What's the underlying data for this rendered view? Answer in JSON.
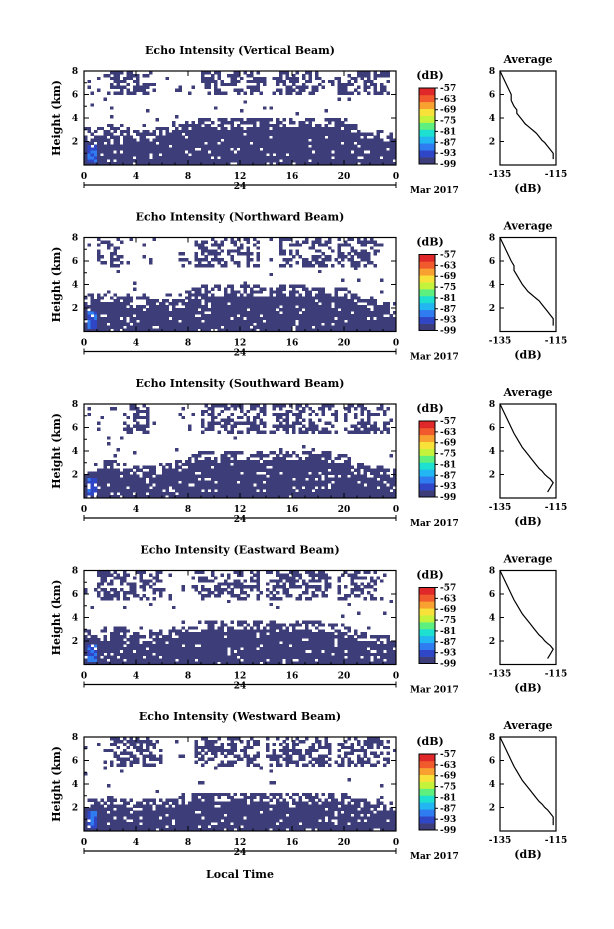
{
  "colors": {
    "palette": [
      "#3d3d7a",
      "#2f46c6",
      "#2f7cf0",
      "#22b6f2",
      "#1de0d0",
      "#5ef07e",
      "#c5f23a",
      "#f8e23a",
      "#f8a030",
      "#f05a2c",
      "#e0282a"
    ],
    "data_fill": "#3d3d7a",
    "axis": "#000000"
  },
  "footer": {
    "xlabel": "Local Time"
  },
  "chart_data": [
    {
      "type": "heatmap",
      "title": "Echo Intensity (Vertical Beam)",
      "ylabel": "Height (km)",
      "xlim": [
        0,
        24
      ],
      "ylim": [
        0,
        8
      ],
      "xticks": [
        "0",
        "4",
        "8",
        "12",
        "16",
        "20",
        "0"
      ],
      "xticks_values": [
        0,
        4,
        8,
        12,
        16,
        20,
        24
      ],
      "yticks": [
        "2",
        "4",
        "6",
        "8"
      ],
      "date_marker": "24",
      "month_label": "Mar 2017",
      "colorbar": {
        "unit": "(dB)",
        "ticks": [
          "-57",
          "-63",
          "-69",
          "-75",
          "-81",
          "-87",
          "-93",
          "-99"
        ],
        "range": [
          -99,
          -57
        ]
      },
      "low_layer_top_km": [
        3.0,
        3.1,
        3.1,
        2.6,
        2.9,
        3.4,
        3.8,
        3.8,
        3.8,
        3.8,
        3.0,
        2.9,
        2.4
      ],
      "low_layer_times_h": [
        0,
        2,
        3,
        4,
        6,
        8,
        9,
        12,
        16,
        20,
        21,
        22,
        24
      ],
      "upper_band_km": [
        6.0,
        8.0
      ],
      "upper_clusters_h": [
        [
          2,
          5.5
        ],
        [
          9,
          14
        ],
        [
          14.5,
          18.5
        ],
        [
          19.5,
          23.5
        ]
      ],
      "enhanced_patch": {
        "time_h": [
          0.2,
          1.0
        ],
        "height_km": [
          0.3,
          1.8
        ],
        "level_db": -90
      },
      "average_profile": {
        "title": "Average",
        "xlabel": "(dB)",
        "xlim": [
          -135,
          -115
        ],
        "xticks": [
          "-135",
          "-115"
        ],
        "yticks": [
          "2",
          "4",
          "6",
          "8"
        ],
        "x_db": [
          -135,
          -134,
          -133,
          -132,
          -131,
          -131,
          -130,
          -129,
          -129,
          -128,
          -127,
          -126,
          -125,
          -124,
          -123,
          -122,
          -121,
          -120,
          -119,
          -118,
          -117,
          -116,
          -116
        ],
        "y_km": [
          8.0,
          7.5,
          7.0,
          6.5,
          6.0,
          5.5,
          5.0,
          4.7,
          4.4,
          4.1,
          3.8,
          3.5,
          3.3,
          3.1,
          2.9,
          2.7,
          2.4,
          2.1,
          1.9,
          1.6,
          1.3,
          1.0,
          0.5
        ]
      }
    },
    {
      "type": "heatmap",
      "title": "Echo Intensity (Northward Beam)",
      "ylabel": "Height (km)",
      "xlim": [
        0,
        24
      ],
      "ylim": [
        0,
        8
      ],
      "xticks": [
        "0",
        "4",
        "8",
        "12",
        "16",
        "20",
        "0"
      ],
      "xticks_values": [
        0,
        4,
        8,
        12,
        16,
        20,
        24
      ],
      "yticks": [
        "2",
        "4",
        "6",
        "8"
      ],
      "date_marker": "24",
      "month_label": "Mar 2017",
      "colorbar": {
        "unit": "(dB)",
        "ticks": [
          "-57",
          "-63",
          "-69",
          "-75",
          "-81",
          "-87",
          "-93",
          "-99"
        ],
        "range": [
          -99,
          -57
        ]
      },
      "low_layer_top_km": [
        2.8,
        3.1,
        3.0,
        2.6,
        2.8,
        3.2,
        3.6,
        3.6,
        3.6,
        3.5,
        2.8,
        2.6,
        2.3
      ],
      "low_layer_times_h": [
        0,
        2,
        3,
        4,
        6,
        8,
        9,
        12,
        16,
        20,
        21,
        22,
        24
      ],
      "upper_band_km": [
        5.5,
        8.0
      ],
      "upper_clusters_h": [
        [
          1,
          3
        ],
        [
          8.5,
          13.5
        ],
        [
          15,
          19
        ],
        [
          19.5,
          22.5
        ]
      ],
      "enhanced_patch": {
        "time_h": [
          0.2,
          1.0
        ],
        "height_km": [
          0.3,
          1.8
        ],
        "level_db": -90
      },
      "average_profile": {
        "title": "Average",
        "xlabel": "(dB)",
        "xlim": [
          -135,
          -115
        ],
        "xticks": [
          "-135",
          "-115"
        ],
        "yticks": [
          "2",
          "4",
          "6",
          "8"
        ],
        "x_db": [
          -135,
          -134,
          -133,
          -132,
          -131,
          -130,
          -130,
          -129,
          -128,
          -127,
          -126,
          -125,
          -124,
          -123,
          -122,
          -121,
          -120,
          -119,
          -118,
          -117,
          -116,
          -116
        ],
        "y_km": [
          8.0,
          7.5,
          7.0,
          6.5,
          6.0,
          5.6,
          5.2,
          4.8,
          4.4,
          4.0,
          3.7,
          3.4,
          3.2,
          3.0,
          2.8,
          2.6,
          2.3,
          2.0,
          1.7,
          1.4,
          1.1,
          0.5
        ]
      }
    },
    {
      "type": "heatmap",
      "title": "Echo Intensity (Southward Beam)",
      "ylabel": "Height (km)",
      "xlim": [
        0,
        24
      ],
      "ylim": [
        0,
        8
      ],
      "xticks": [
        "0",
        "4",
        "8",
        "12",
        "16",
        "20",
        "0"
      ],
      "xticks_values": [
        0,
        4,
        8,
        12,
        16,
        20,
        24
      ],
      "yticks": [
        "2",
        "4",
        "6",
        "8"
      ],
      "date_marker": "24",
      "month_label": "Mar 2017",
      "colorbar": {
        "unit": "(dB)",
        "ticks": [
          "-57",
          "-63",
          "-69",
          "-75",
          "-81",
          "-87",
          "-93",
          "-99"
        ],
        "range": [
          -99,
          -57
        ]
      },
      "low_layer_top_km": [
        2.6,
        2.9,
        2.8,
        2.4,
        2.6,
        3.1,
        3.7,
        3.8,
        3.8,
        3.5,
        2.7,
        2.5,
        2.2
      ],
      "low_layer_times_h": [
        0,
        2,
        3,
        4,
        6,
        8,
        9,
        12,
        16,
        20,
        21,
        22,
        24
      ],
      "upper_band_km": [
        5.5,
        8.0
      ],
      "upper_clusters_h": [
        [
          3,
          5
        ],
        [
          9,
          14
        ],
        [
          14.5,
          19.5
        ],
        [
          20,
          23.5
        ]
      ],
      "enhanced_patch": {
        "time_h": [
          0.2,
          1.0
        ],
        "height_km": [
          0.3,
          1.8
        ],
        "level_db": -90
      },
      "average_profile": {
        "title": "Average",
        "xlabel": "(dB)",
        "xlim": [
          -135,
          -115
        ],
        "xticks": [
          "-135",
          "-115"
        ],
        "yticks": [
          "2",
          "4",
          "6",
          "8"
        ],
        "x_db": [
          -135,
          -134,
          -133,
          -132,
          -131,
          -130,
          -129,
          -128,
          -127,
          -126,
          -125,
          -124,
          -123,
          -122,
          -121,
          -120,
          -119,
          -118,
          -117,
          -116,
          -117,
          -118
        ],
        "y_km": [
          8.0,
          7.5,
          7.0,
          6.5,
          6.0,
          5.5,
          5.1,
          4.7,
          4.3,
          4.0,
          3.7,
          3.4,
          3.1,
          2.8,
          2.5,
          2.3,
          2.0,
          1.8,
          1.6,
          1.3,
          0.9,
          0.5
        ]
      }
    },
    {
      "type": "heatmap",
      "title": "Echo Intensity (Eastward Beam)",
      "ylabel": "Height (km)",
      "xlim": [
        0,
        24
      ],
      "ylim": [
        0,
        8
      ],
      "xticks": [
        "0",
        "4",
        "8",
        "12",
        "16",
        "20",
        "0"
      ],
      "xticks_values": [
        0,
        4,
        8,
        12,
        16,
        20,
        24
      ],
      "yticks": [
        "2",
        "4",
        "6",
        "8"
      ],
      "date_marker": "24",
      "month_label": "Mar 2017",
      "colorbar": {
        "unit": "(dB)",
        "ticks": [
          "-57",
          "-63",
          "-69",
          "-75",
          "-81",
          "-87",
          "-93",
          "-99"
        ],
        "range": [
          -99,
          -57
        ]
      },
      "low_layer_top_km": [
        2.6,
        3.0,
        2.9,
        2.5,
        2.7,
        3.0,
        3.4,
        3.4,
        3.4,
        3.3,
        2.6,
        2.4,
        2.1
      ],
      "low_layer_times_h": [
        0,
        2,
        3,
        4,
        6,
        8,
        9,
        12,
        16,
        20,
        21,
        22,
        24
      ],
      "upper_band_km": [
        5.5,
        8.0
      ],
      "upper_clusters_h": [
        [
          1,
          6
        ],
        [
          8.5,
          13.5
        ],
        [
          14,
          19
        ],
        [
          19.5,
          22.5
        ]
      ],
      "enhanced_patch": {
        "time_h": [
          0.2,
          1.0
        ],
        "height_km": [
          0.3,
          1.8
        ],
        "level_db": -90
      },
      "average_profile": {
        "title": "Average",
        "xlabel": "(dB)",
        "xlim": [
          -135,
          -115
        ],
        "xticks": [
          "-135",
          "-115"
        ],
        "yticks": [
          "2",
          "4",
          "6",
          "8"
        ],
        "x_db": [
          -135,
          -134,
          -133,
          -132,
          -131,
          -130,
          -129,
          -128,
          -127,
          -126,
          -125,
          -124,
          -123,
          -122,
          -121,
          -120,
          -119,
          -118,
          -117,
          -116,
          -117,
          -118
        ],
        "y_km": [
          8.0,
          7.5,
          7.0,
          6.5,
          6.0,
          5.5,
          5.1,
          4.7,
          4.3,
          4.0,
          3.7,
          3.4,
          3.1,
          2.8,
          2.5,
          2.3,
          2.0,
          1.8,
          1.6,
          1.3,
          0.9,
          0.5
        ]
      }
    },
    {
      "type": "heatmap",
      "title": "Echo Intensity (Westward Beam)",
      "ylabel": "Height (km)",
      "xlim": [
        0,
        24
      ],
      "ylim": [
        0,
        8
      ],
      "xticks": [
        "0",
        "4",
        "8",
        "12",
        "16",
        "20",
        "0"
      ],
      "xticks_values": [
        0,
        4,
        8,
        12,
        16,
        20,
        24
      ],
      "yticks": [
        "2",
        "4",
        "6",
        "8"
      ],
      "date_marker": "24",
      "month_label": "Mar 2017",
      "colorbar": {
        "unit": "(dB)",
        "ticks": [
          "-57",
          "-63",
          "-69",
          "-75",
          "-81",
          "-87",
          "-93",
          "-99"
        ],
        "range": [
          -99,
          -57
        ]
      },
      "low_layer_top_km": [
        2.4,
        2.6,
        2.5,
        2.3,
        2.4,
        2.8,
        3.0,
        3.0,
        3.0,
        2.9,
        2.5,
        2.4,
        2.2
      ],
      "low_layer_times_h": [
        0,
        2,
        3,
        4,
        6,
        8,
        9,
        12,
        16,
        20,
        21,
        22,
        24
      ],
      "upper_band_km": [
        5.5,
        8.0
      ],
      "upper_clusters_h": [
        [
          2,
          6
        ],
        [
          8.5,
          13.5
        ],
        [
          14,
          19
        ],
        [
          19.5,
          23.5
        ]
      ],
      "enhanced_patch": {
        "time_h": [
          0.2,
          1.0
        ],
        "height_km": [
          0.3,
          1.8
        ],
        "level_db": -90
      },
      "average_profile": {
        "title": "Average",
        "xlabel": "(dB)",
        "xlim": [
          -135,
          -115
        ],
        "xticks": [
          "-135",
          "-115"
        ],
        "yticks": [
          "2",
          "4",
          "6",
          "8"
        ],
        "x_db": [
          -135,
          -134,
          -133,
          -132,
          -131,
          -130,
          -129,
          -128,
          -127,
          -126,
          -125,
          -124,
          -123,
          -122,
          -121,
          -120,
          -119,
          -118,
          -117,
          -116,
          -116
        ],
        "y_km": [
          8.0,
          7.5,
          7.0,
          6.5,
          6.0,
          5.5,
          5.1,
          4.7,
          4.3,
          4.0,
          3.7,
          3.4,
          3.1,
          2.8,
          2.5,
          2.3,
          2.0,
          1.8,
          1.5,
          1.2,
          0.5
        ]
      }
    }
  ]
}
